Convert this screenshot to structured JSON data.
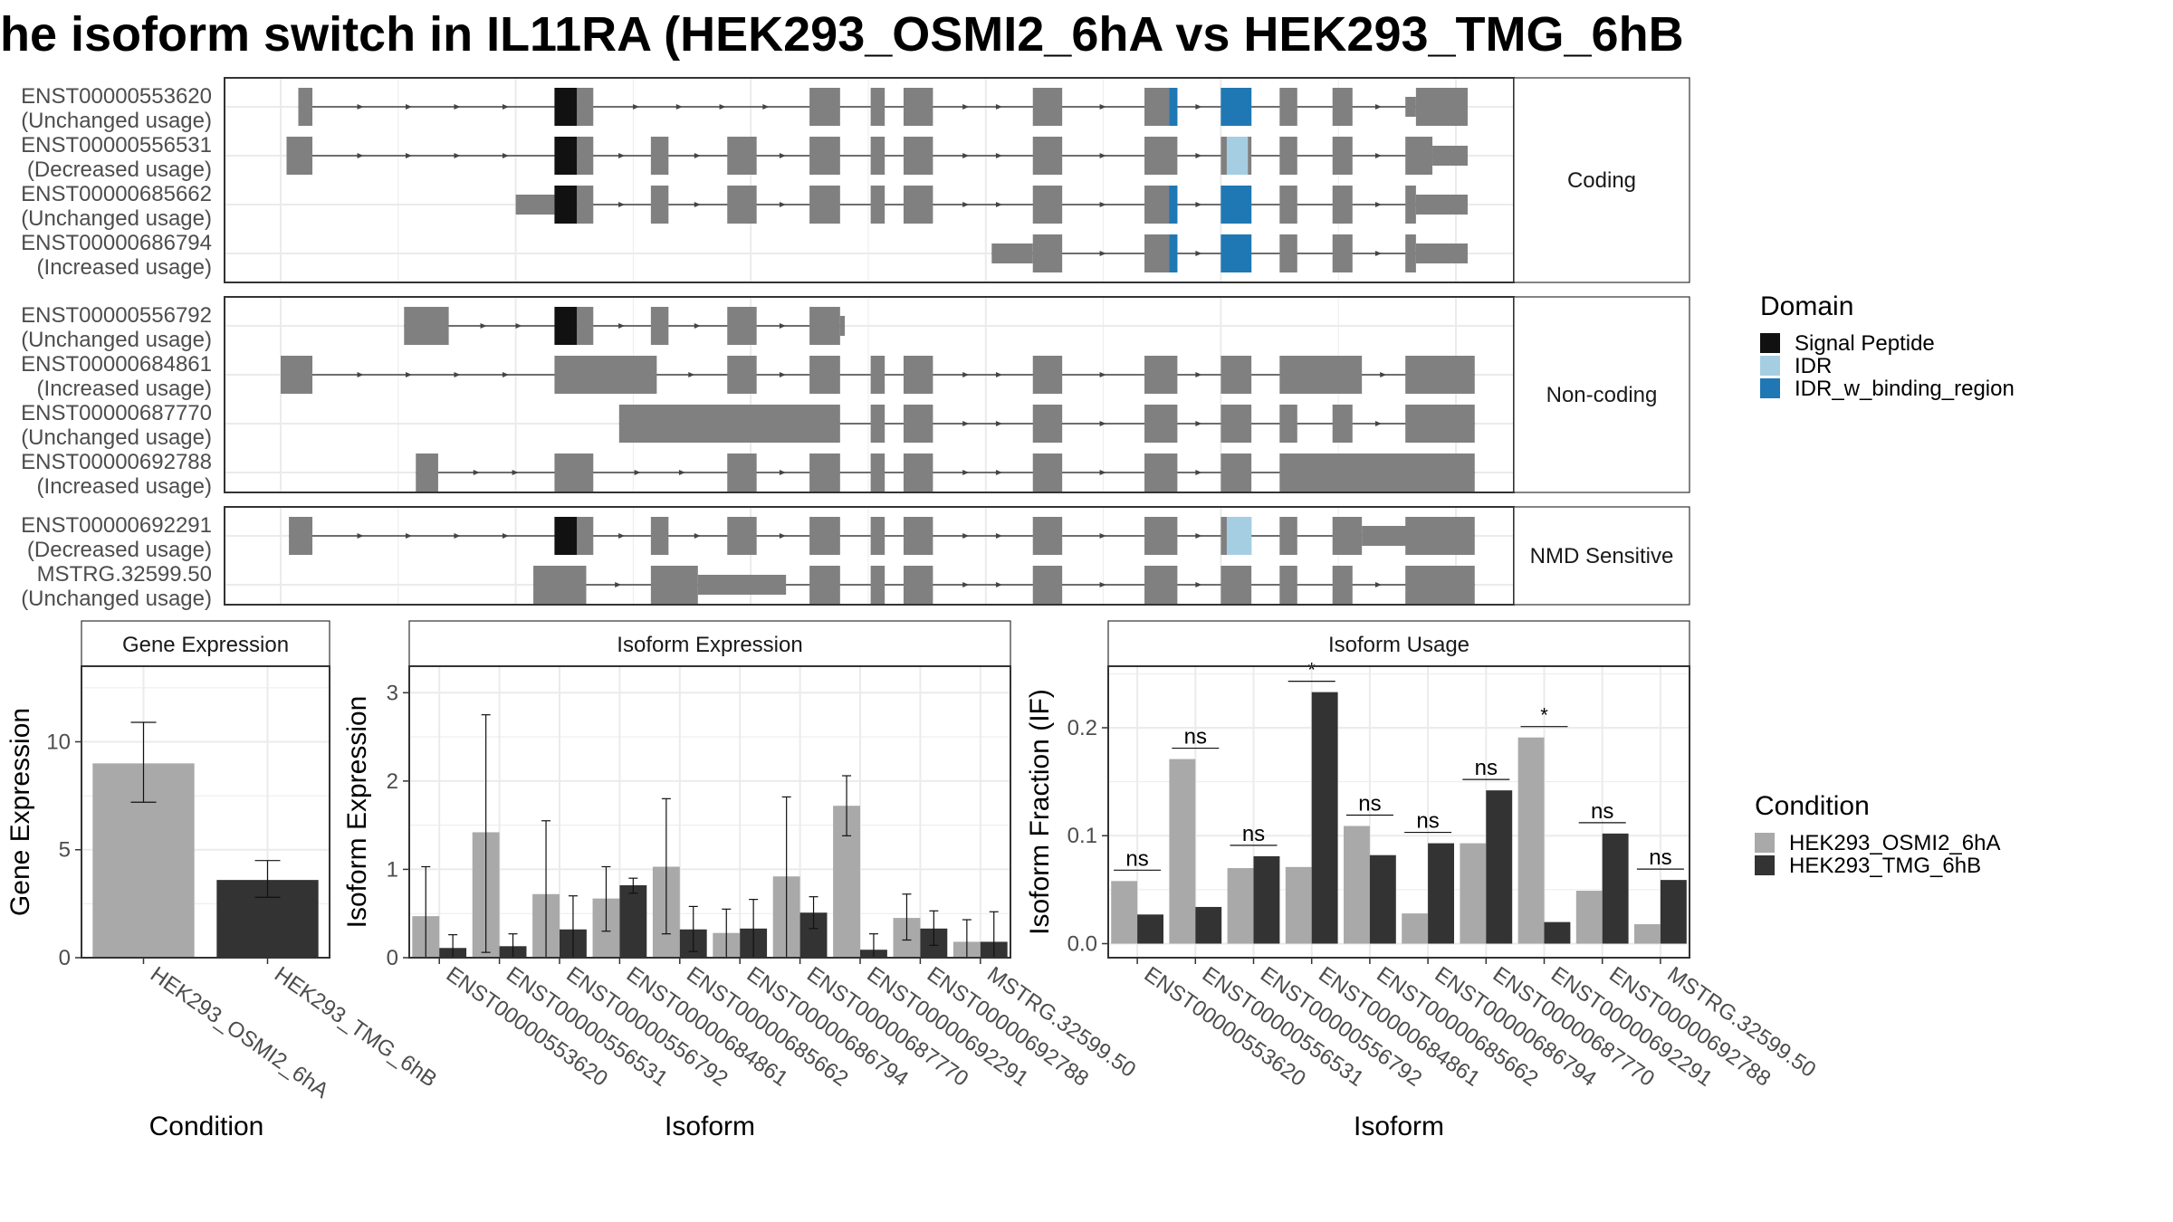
{
  "title": "he isoform switch in IL11RA (HEK293_OSMI2_6hA vs HEK293_TMG_6hB",
  "colors": {
    "exon": "#808080",
    "signal_peptide": "#111111",
    "idr": "#a6cee3",
    "idr_binding": "#1f78b4",
    "cond_a": "#a9a9a9",
    "cond_b": "#333333",
    "grid": "#ebebeb",
    "strip_bg": "#ffffff"
  },
  "structure": {
    "coord_range": [
      0,
      1000
    ],
    "groups": [
      {
        "name": "Coding",
        "transcripts": [
          {
            "id": "ENST00000553620",
            "usage": "(Unchanged usage)",
            "exons": [
              [
                15,
                27
              ],
              [
                233,
                252
              ],
              [
                252,
                266
              ],
              [
                450,
                476
              ],
              [
                502,
                514
              ],
              [
                530,
                555
              ],
              [
                640,
                665
              ],
              [
                735,
                756
              ],
              [
                756,
                763
              ],
              [
                800,
                826
              ],
              [
                850,
                865
              ],
              [
                895,
                912
              ],
              [
                957,
                966
              ],
              [
                966,
                1010
              ]
            ],
            "small_exons": [
              [
                957,
                966
              ]
            ],
            "domains": [
              [
                233,
                252,
                "signal_peptide"
              ],
              [
                756,
                763,
                "idr_binding"
              ],
              [
                800,
                826,
                "idr_binding"
              ]
            ]
          },
          {
            "id": "ENST00000556531",
            "usage": "(Decreased usage)",
            "exons": [
              [
                5,
                27
              ],
              [
                233,
                252
              ],
              [
                252,
                266
              ],
              [
                315,
                330
              ],
              [
                380,
                405
              ],
              [
                450,
                476
              ],
              [
                502,
                514
              ],
              [
                530,
                555
              ],
              [
                640,
                665
              ],
              [
                735,
                763
              ],
              [
                800,
                826
              ],
              [
                850,
                865
              ],
              [
                895,
                912
              ],
              [
                957,
                980
              ],
              [
                980,
                1010
              ]
            ],
            "small_exons": [
              [
                980,
                1010
              ]
            ],
            "domains": [
              [
                233,
                252,
                "signal_peptide"
              ],
              [
                805,
                823,
                "idr"
              ]
            ]
          },
          {
            "id": "ENST00000685662",
            "usage": "(Unchanged usage)",
            "exons": [
              [
                200,
                233
              ],
              [
                233,
                252
              ],
              [
                252,
                266
              ],
              [
                315,
                330
              ],
              [
                380,
                405
              ],
              [
                450,
                476
              ],
              [
                502,
                514
              ],
              [
                530,
                555
              ],
              [
                640,
                665
              ],
              [
                735,
                763
              ],
              [
                800,
                826
              ],
              [
                850,
                865
              ],
              [
                895,
                912
              ],
              [
                957,
                966
              ],
              [
                966,
                1010
              ]
            ],
            "small_exons": [
              [
                200,
                233
              ],
              [
                966,
                1010
              ]
            ],
            "domains": [
              [
                233,
                252,
                "signal_peptide"
              ],
              [
                756,
                763,
                "idr_binding"
              ],
              [
                800,
                826,
                "idr_binding"
              ]
            ]
          },
          {
            "id": "ENST00000686794",
            "usage": "(Increased usage)",
            "exons": [
              [
                605,
                640
              ],
              [
                640,
                665
              ],
              [
                735,
                756
              ],
              [
                756,
                763
              ],
              [
                800,
                826
              ],
              [
                850,
                865
              ],
              [
                895,
                912
              ],
              [
                957,
                966
              ],
              [
                966,
                1010
              ]
            ],
            "small_exons": [
              [
                605,
                640
              ],
              [
                966,
                1010
              ]
            ],
            "domains": [
              [
                756,
                763,
                "idr_binding"
              ],
              [
                800,
                826,
                "idr_binding"
              ]
            ]
          }
        ]
      },
      {
        "name": "Non-coding",
        "transcripts": [
          {
            "id": "ENST00000556792",
            "usage": "(Unchanged usage)",
            "exons": [
              [
                105,
                143
              ],
              [
                233,
                252
              ],
              [
                252,
                266
              ],
              [
                315,
                330
              ],
              [
                380,
                405
              ],
              [
                450,
                476
              ],
              [
                476,
                480
              ]
            ],
            "small_exons": [
              [
                476,
                480
              ]
            ],
            "domains": [
              [
                233,
                252,
                "signal_peptide"
              ]
            ]
          },
          {
            "id": "ENST00000684861",
            "usage": "(Increased usage)",
            "exons": [
              [
                0,
                27
              ],
              [
                233,
                320
              ],
              [
                380,
                405
              ],
              [
                450,
                476
              ],
              [
                502,
                514
              ],
              [
                530,
                555
              ],
              [
                640,
                665
              ],
              [
                735,
                763
              ],
              [
                800,
                826
              ],
              [
                850,
                920
              ],
              [
                957,
                1016
              ]
            ],
            "small_exons": [],
            "domains": []
          },
          {
            "id": "ENST00000687770",
            "usage": "(Unchanged usage)",
            "exons": [
              [
                288,
                476
              ],
              [
                502,
                514
              ],
              [
                530,
                555
              ],
              [
                640,
                665
              ],
              [
                735,
                763
              ],
              [
                800,
                826
              ],
              [
                850,
                865
              ],
              [
                895,
                912
              ],
              [
                957,
                1016
              ]
            ],
            "small_exons": [],
            "domains": []
          },
          {
            "id": "ENST00000692788",
            "usage": "(Increased usage)",
            "exons": [
              [
                115,
                134
              ],
              [
                233,
                266
              ],
              [
                380,
                405
              ],
              [
                450,
                476
              ],
              [
                502,
                514
              ],
              [
                530,
                555
              ],
              [
                640,
                665
              ],
              [
                735,
                763
              ],
              [
                800,
                826
              ],
              [
                850,
                1016
              ]
            ],
            "small_exons": [],
            "domains": []
          }
        ]
      },
      {
        "name": "NMD Sensitive",
        "transcripts": [
          {
            "id": "ENST00000692291",
            "usage": "(Decreased usage)",
            "exons": [
              [
                7,
                27
              ],
              [
                233,
                252
              ],
              [
                252,
                266
              ],
              [
                315,
                330
              ],
              [
                380,
                405
              ],
              [
                450,
                476
              ],
              [
                502,
                514
              ],
              [
                530,
                555
              ],
              [
                640,
                665
              ],
              [
                735,
                763
              ],
              [
                800,
                826
              ],
              [
                850,
                865
              ],
              [
                895,
                920
              ],
              [
                920,
                960
              ],
              [
                957,
                1016
              ]
            ],
            "small_exons": [
              [
                920,
                960
              ]
            ],
            "domains": [
              [
                233,
                252,
                "signal_peptide"
              ],
              [
                805,
                826,
                "idr"
              ]
            ]
          },
          {
            "id": "MSTRG.32599.50",
            "usage": "(Unchanged usage)",
            "exons": [
              [
                215,
                260
              ],
              [
                315,
                355
              ],
              [
                355,
                430
              ],
              [
                450,
                476
              ],
              [
                502,
                514
              ],
              [
                530,
                555
              ],
              [
                640,
                665
              ],
              [
                735,
                763
              ],
              [
                800,
                826
              ],
              [
                850,
                865
              ],
              [
                895,
                912
              ],
              [
                957,
                1016
              ]
            ],
            "small_exons": [
              [
                355,
                430
              ]
            ],
            "domains": []
          }
        ]
      }
    ],
    "legend_title": "Domain",
    "legend_items": [
      {
        "label": "Signal Peptide",
        "color": "#111111"
      },
      {
        "label": "IDR",
        "color": "#a6cee3"
      },
      {
        "label": "IDR_w_binding_region",
        "color": "#1f78b4"
      }
    ]
  },
  "chart_data": [
    {
      "type": "bar",
      "title": "Gene Expression",
      "xlabel": "Condition",
      "ylabel": "Gene Expression",
      "ylim": [
        0,
        13.5
      ],
      "yticks": [
        0,
        5,
        10
      ],
      "categories": [
        "HEK293_OSMI2_6hA",
        "HEK293_TMG_6hB"
      ],
      "values": [
        9.0,
        3.6
      ],
      "errors": [
        [
          7.2,
          10.9
        ],
        [
          2.8,
          4.5
        ]
      ]
    },
    {
      "type": "bar",
      "title": "Isoform Expression",
      "xlabel": "Isoform",
      "ylabel": "Isoform Expression",
      "ylim": [
        0,
        3.3
      ],
      "yticks": [
        0,
        1,
        2,
        3
      ],
      "categories": [
        "ENST00000553620",
        "ENST00000556531",
        "ENST00000556792",
        "ENST00000684861",
        "ENST00000685662",
        "ENST00000686794",
        "ENST00000687770",
        "ENST00000692291",
        "ENST00000692788",
        "MSTRG.32599.50"
      ],
      "series": [
        {
          "name": "HEK293_OSMI2_6hA",
          "values": [
            0.47,
            1.42,
            0.72,
            0.67,
            1.03,
            0.28,
            0.92,
            1.72,
            0.45,
            0.18
          ],
          "errors": [
            [
              0,
              1.03
            ],
            [
              0.06,
              2.75
            ],
            [
              0,
              1.55
            ],
            [
              0.3,
              1.03
            ],
            [
              0.27,
              1.8
            ],
            [
              0,
              0.55
            ],
            [
              0,
              1.82
            ],
            [
              1.38,
              2.06
            ],
            [
              0.2,
              0.72
            ],
            [
              0,
              0.43
            ]
          ]
        },
        {
          "name": "HEK293_TMG_6hB",
          "values": [
            0.11,
            0.13,
            0.32,
            0.82,
            0.32,
            0.33,
            0.51,
            0.09,
            0.33,
            0.18
          ],
          "errors": [
            [
              0,
              0.26
            ],
            [
              0,
              0.27
            ],
            [
              0,
              0.7
            ],
            [
              0.73,
              0.9
            ],
            [
              0.07,
              0.58
            ],
            [
              0,
              0.66
            ],
            [
              0.33,
              0.69
            ],
            [
              0,
              0.27
            ],
            [
              0.14,
              0.53
            ],
            [
              0,
              0.52
            ]
          ]
        }
      ]
    },
    {
      "type": "bar",
      "title": "Isoform Usage",
      "xlabel": "Isoform",
      "ylabel": "Isoform Fraction (IF)",
      "ylim": [
        -0.013,
        0.257
      ],
      "yticks": [
        0.0,
        0.1,
        0.2
      ],
      "ytick_labels": [
        "0.0",
        "0.1",
        "0.2"
      ],
      "categories": [
        "ENST00000553620",
        "ENST00000556531",
        "ENST00000556792",
        "ENST00000684861",
        "ENST00000685662",
        "ENST00000686794",
        "ENST00000687770",
        "ENST00000692291",
        "ENST00000692788",
        "MSTRG.32599.50"
      ],
      "series": [
        {
          "name": "HEK293_OSMI2_6hA",
          "values": [
            0.058,
            0.171,
            0.07,
            0.071,
            0.109,
            0.028,
            0.093,
            0.191,
            0.049,
            0.018
          ]
        },
        {
          "name": "HEK293_TMG_6hB",
          "values": [
            0.027,
            0.034,
            0.081,
            0.233,
            0.082,
            0.093,
            0.142,
            0.02,
            0.102,
            0.059
          ]
        }
      ],
      "significance": [
        "ns",
        "ns",
        "ns",
        "*",
        "ns",
        "ns",
        "ns",
        "*",
        "ns",
        "ns"
      ]
    }
  ],
  "condition_legend": {
    "title": "Condition",
    "items": [
      {
        "label": "HEK293_OSMI2_6hA",
        "color": "#a9a9a9"
      },
      {
        "label": "HEK293_TMG_6hB",
        "color": "#333333"
      }
    ]
  }
}
